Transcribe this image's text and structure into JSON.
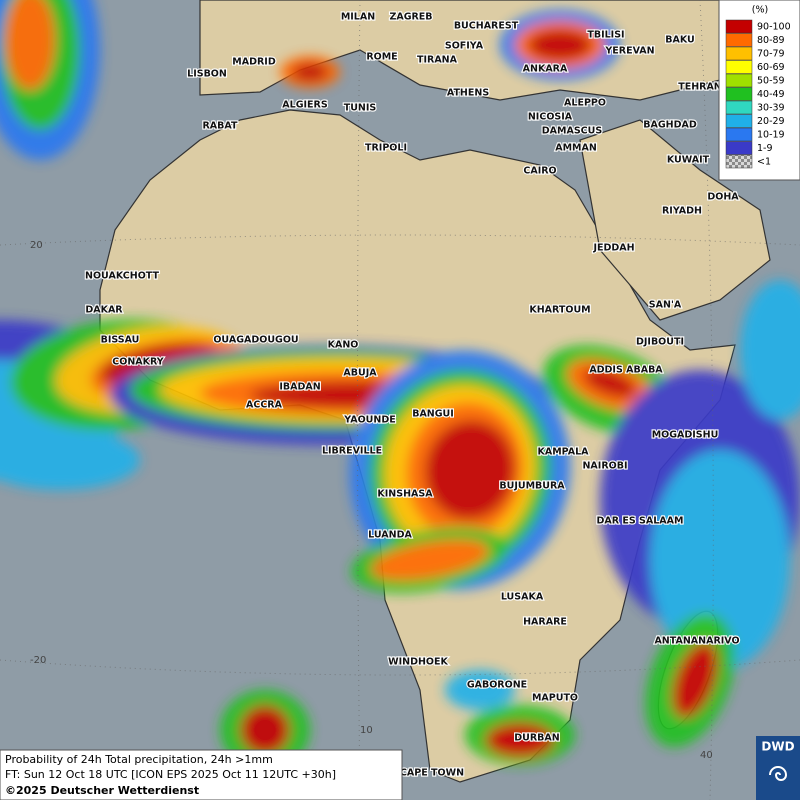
{
  "cities": [
    "MILAN",
    "ZAGREB",
    "BUCHAREST",
    "TBILISI",
    "BAKU",
    "MADRID",
    "ROME",
    "SOFIYA",
    "TIRANA",
    "ANKARA",
    "YEREVAN",
    "LISBON",
    "TEHRAN",
    "ATHENS",
    "ALGIERS",
    "TUNIS",
    "ALEPPO",
    "NICOSIA",
    "RABAT",
    "BAGHDAD",
    "DAMASCUS",
    "TRIPOLI",
    "AMMAN",
    "KUWAIT",
    "CAIRO",
    "DOHA",
    "RIYADH",
    "JEDDAH",
    "NOUAKCHOTT",
    "SAN'A",
    "DAKAR",
    "KHARTOUM",
    "BISSAU",
    "OUAGADOUGOU",
    "DJIBOUTI",
    "KANO",
    "CONAKRY",
    "ABUJA",
    "ADDIS ABABA",
    "IBADAN",
    "ACCRA",
    "BANGUI",
    "YAOUNDE",
    "MOGADISHU",
    "LIBREVILLE",
    "KAMPALA",
    "NAIROBI",
    "KINSHASA",
    "BUJUMBURA",
    "DAR ES SALAAM",
    "LUANDA",
    "LUSAKA",
    "ANTANANARIVO",
    "HARARE",
    "WINDHOEK",
    "GABORONE",
    "MAPUTO",
    "DURBAN",
    "CAPE TOWN"
  ],
  "coordinate_labels": [
    "20",
    "-20",
    "10",
    "40"
  ],
  "legend": {
    "title": "(%)",
    "entries": [
      {
        "label": "90-100",
        "color": "#c40000"
      },
      {
        "label": "80-89",
        "color": "#ff6a00"
      },
      {
        "label": "70-79",
        "color": "#ffc000"
      },
      {
        "label": "60-69",
        "color": "#ffff00"
      },
      {
        "label": "50-59",
        "color": "#a0e000"
      },
      {
        "label": "40-49",
        "color": "#20c020"
      },
      {
        "label": "30-39",
        "color": "#30d8c0"
      },
      {
        "label": "20-29",
        "color": "#20b0e8"
      },
      {
        "label": "10-19",
        "color": "#2a78f0"
      },
      {
        "label": "1-9",
        "color": "#3a3ac8"
      },
      {
        "label": "<1",
        "color": "#b0b0b0"
      }
    ]
  },
  "footer": {
    "line1": "Probability of 24h Total precipitation, 24h >1mm",
    "line2": "FT: Sun 12 Oct 18 UTC [ICON EPS 2025 Oct 11 12UTC +30h]",
    "line3": "©2025 Deutscher Wetterdienst"
  },
  "logo": "DWD"
}
